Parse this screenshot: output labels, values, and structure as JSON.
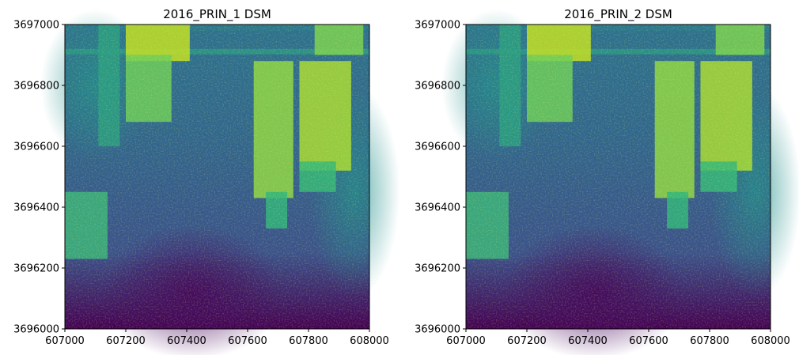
{
  "chart_data": [
    {
      "type": "heatmap",
      "title": "2016_PRIN_1 DSM",
      "xlabel": "",
      "ylabel": "",
      "xlim": [
        607000,
        608000
      ],
      "ylim": [
        3696000,
        3697000
      ],
      "xticks": [
        607000,
        607200,
        607400,
        607600,
        607800,
        608000
      ],
      "yticks": [
        3696000,
        3696200,
        3696400,
        3696600,
        3696800,
        3697000
      ],
      "xtick_labels": [
        "607000",
        "607200",
        "607400",
        "607600",
        "607800",
        "608000"
      ],
      "ytick_labels": [
        "3696000",
        "3696200",
        "3696400",
        "3696600",
        "3696800",
        "3697000"
      ],
      "colormap": "viridis",
      "grid": false
    },
    {
      "type": "heatmap",
      "title": "2016_PRIN_2 DSM",
      "xlabel": "",
      "ylabel": "",
      "xlim": [
        607000,
        608000
      ],
      "ylim": [
        3696000,
        3697000
      ],
      "xticks": [
        607000,
        607200,
        607400,
        607600,
        607800,
        608000
      ],
      "yticks": [
        3696000,
        3696200,
        3696400,
        3696600,
        3696800,
        3697000
      ],
      "xtick_labels": [
        "607000",
        "607200",
        "607400",
        "607600",
        "607800",
        "608000"
      ],
      "ytick_labels": [
        "3696000",
        "3696200",
        "3696400",
        "3696600",
        "3696800",
        "3697000"
      ],
      "colormap": "viridis",
      "grid": false
    }
  ]
}
